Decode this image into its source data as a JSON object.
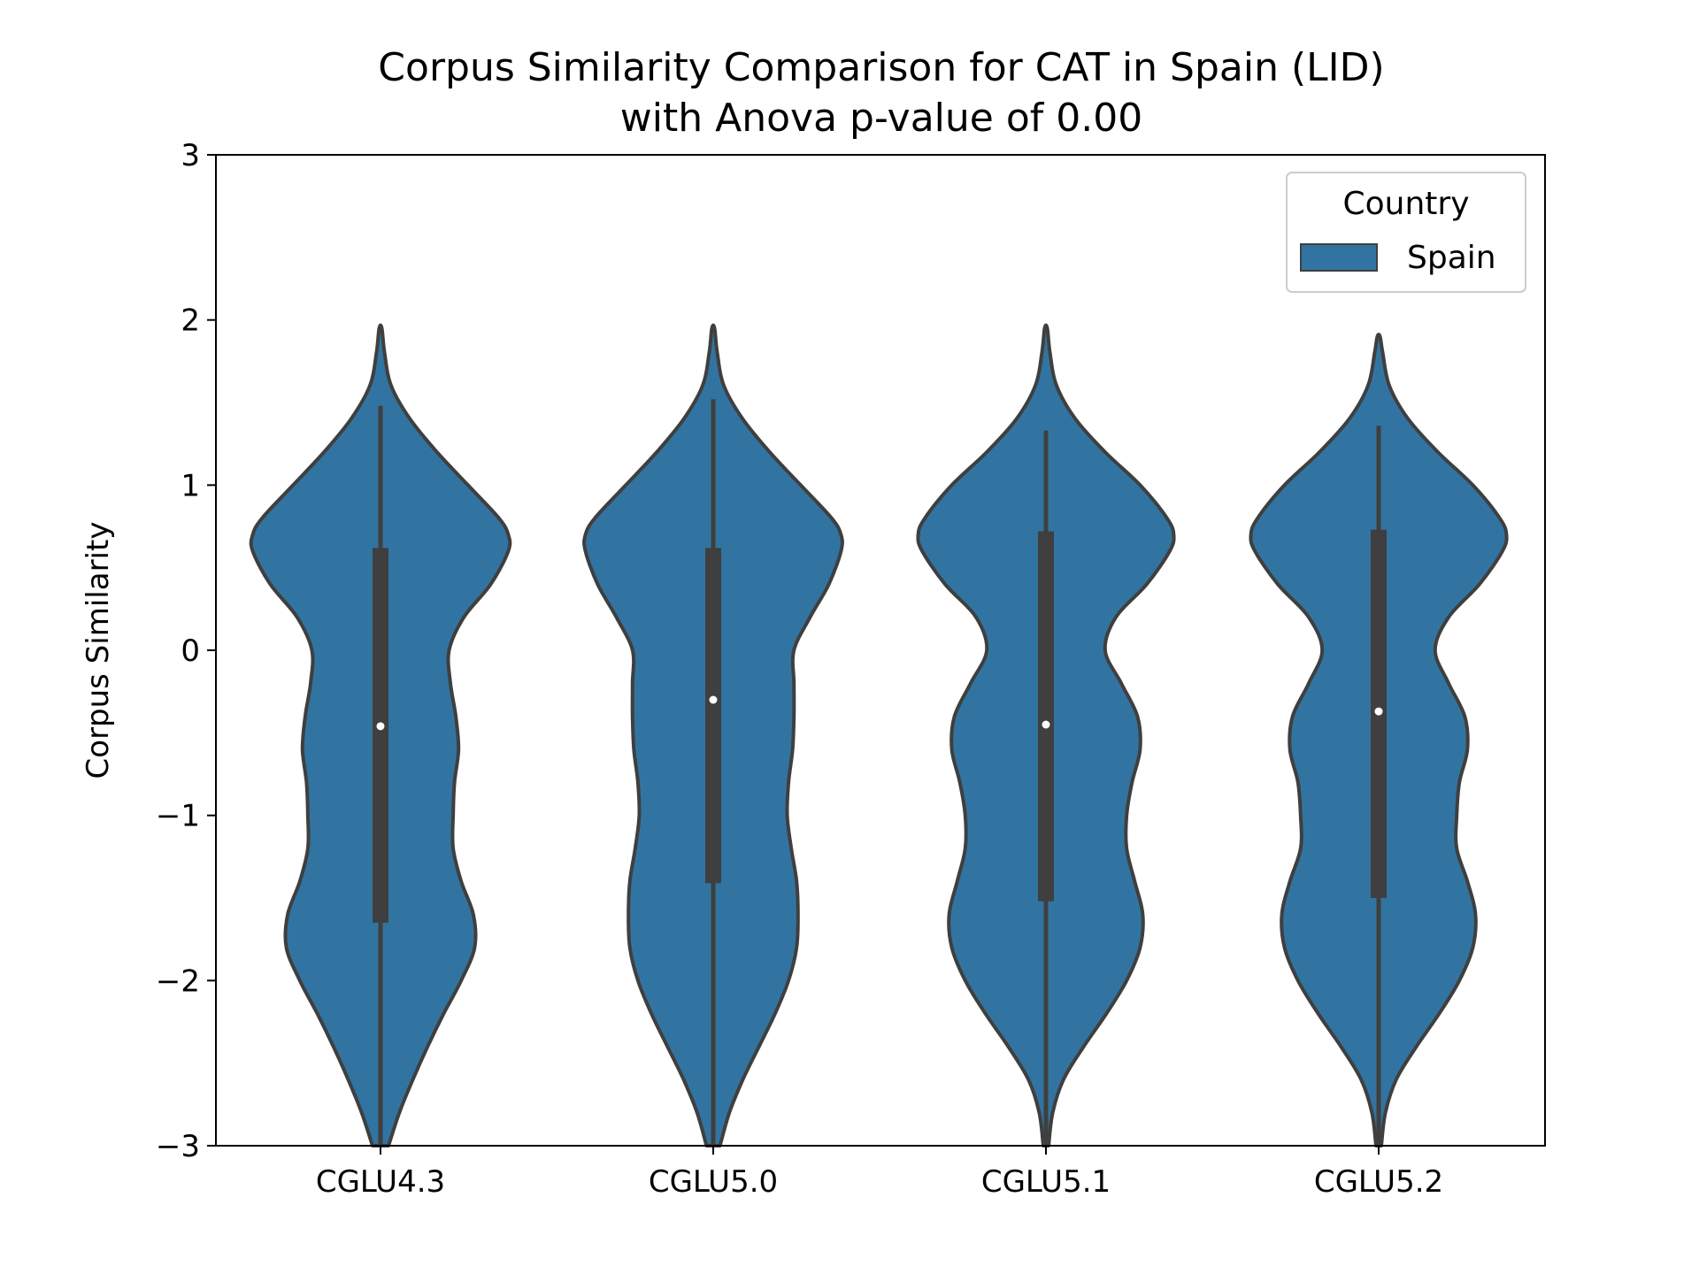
{
  "chart_data": {
    "type": "violin",
    "title_line1": "Corpus Similarity Comparison for CAT in Spain (LID)",
    "title_line2": "with Anova p-value of 0.00",
    "xlabel": "",
    "ylabel": "Corpus Similarity",
    "ylim": [
      -3,
      3
    ],
    "yticks": [
      -3,
      -2,
      -1,
      0,
      1,
      2,
      3
    ],
    "ytick_labels": [
      "−3",
      "−2",
      "−1",
      "0",
      "1",
      "2",
      "3"
    ],
    "categories": [
      "CGLU4.3",
      "CGLU5.0",
      "CGLU5.1",
      "CGLU5.2"
    ],
    "legend": {
      "title": "Country",
      "entries": [
        "Spain"
      ],
      "placement": "top-right"
    },
    "colors": {
      "fill": "#3274a1",
      "edge": "#3f3f3f",
      "box": "#3f3f3f",
      "median": "#ffffff"
    },
    "series": [
      {
        "category": "CGLU4.3",
        "median": -0.46,
        "q1": -1.65,
        "q3": 0.62,
        "whisker_low": -3.0,
        "whisker_high": 1.48,
        "density_profile": [
          [
            -3.0,
            0.06
          ],
          [
            -2.8,
            0.14
          ],
          [
            -2.6,
            0.24
          ],
          [
            -2.4,
            0.35
          ],
          [
            -2.2,
            0.47
          ],
          [
            -2.0,
            0.6
          ],
          [
            -1.8,
            0.7
          ],
          [
            -1.6,
            0.69
          ],
          [
            -1.4,
            0.6
          ],
          [
            -1.2,
            0.54
          ],
          [
            -1.0,
            0.54
          ],
          [
            -0.8,
            0.55
          ],
          [
            -0.6,
            0.58
          ],
          [
            -0.4,
            0.56
          ],
          [
            -0.2,
            0.52
          ],
          [
            0.0,
            0.51
          ],
          [
            0.2,
            0.62
          ],
          [
            0.4,
            0.82
          ],
          [
            0.6,
            0.95
          ],
          [
            0.7,
            0.95
          ],
          [
            0.8,
            0.88
          ],
          [
            1.0,
            0.65
          ],
          [
            1.2,
            0.42
          ],
          [
            1.4,
            0.22
          ],
          [
            1.6,
            0.08
          ],
          [
            1.8,
            0.03
          ],
          [
            1.95,
            0.01
          ]
        ]
      },
      {
        "category": "CGLU5.0",
        "median": -0.3,
        "q1": -1.41,
        "q3": 0.62,
        "whisker_low": -3.0,
        "whisker_high": 1.52,
        "density_profile": [
          [
            -3.0,
            0.05
          ],
          [
            -2.8,
            0.12
          ],
          [
            -2.6,
            0.22
          ],
          [
            -2.4,
            0.34
          ],
          [
            -2.2,
            0.46
          ],
          [
            -2.0,
            0.56
          ],
          [
            -1.8,
            0.62
          ],
          [
            -1.6,
            0.63
          ],
          [
            -1.4,
            0.62
          ],
          [
            -1.2,
            0.58
          ],
          [
            -1.0,
            0.55
          ],
          [
            -0.8,
            0.56
          ],
          [
            -0.6,
            0.59
          ],
          [
            -0.4,
            0.6
          ],
          [
            -0.2,
            0.6
          ],
          [
            0.0,
            0.6
          ],
          [
            0.2,
            0.72
          ],
          [
            0.4,
            0.86
          ],
          [
            0.6,
            0.95
          ],
          [
            0.7,
            0.95
          ],
          [
            0.8,
            0.88
          ],
          [
            1.0,
            0.65
          ],
          [
            1.2,
            0.42
          ],
          [
            1.4,
            0.22
          ],
          [
            1.6,
            0.08
          ],
          [
            1.8,
            0.03
          ],
          [
            1.95,
            0.01
          ]
        ]
      },
      {
        "category": "CGLU5.1",
        "median": -0.45,
        "q1": -1.52,
        "q3": 0.72,
        "whisker_low": -3.0,
        "whisker_high": 1.33,
        "density_profile": [
          [
            -3.0,
            0.02
          ],
          [
            -2.8,
            0.05
          ],
          [
            -2.6,
            0.13
          ],
          [
            -2.4,
            0.28
          ],
          [
            -2.2,
            0.45
          ],
          [
            -2.0,
            0.6
          ],
          [
            -1.8,
            0.7
          ],
          [
            -1.6,
            0.72
          ],
          [
            -1.4,
            0.66
          ],
          [
            -1.2,
            0.6
          ],
          [
            -1.0,
            0.6
          ],
          [
            -0.8,
            0.64
          ],
          [
            -0.6,
            0.7
          ],
          [
            -0.4,
            0.68
          ],
          [
            -0.2,
            0.56
          ],
          [
            0.0,
            0.44
          ],
          [
            0.2,
            0.52
          ],
          [
            0.4,
            0.75
          ],
          [
            0.6,
            0.92
          ],
          [
            0.7,
            0.95
          ],
          [
            0.8,
            0.9
          ],
          [
            1.0,
            0.7
          ],
          [
            1.2,
            0.44
          ],
          [
            1.4,
            0.22
          ],
          [
            1.6,
            0.08
          ],
          [
            1.8,
            0.03
          ],
          [
            1.95,
            0.01
          ]
        ]
      },
      {
        "category": "CGLU5.2",
        "median": -0.37,
        "q1": -1.5,
        "q3": 0.73,
        "whisker_low": -3.0,
        "whisker_high": 1.36,
        "density_profile": [
          [
            -3.0,
            0.02
          ],
          [
            -2.8,
            0.05
          ],
          [
            -2.6,
            0.13
          ],
          [
            -2.4,
            0.28
          ],
          [
            -2.2,
            0.45
          ],
          [
            -2.0,
            0.6
          ],
          [
            -1.8,
            0.7
          ],
          [
            -1.6,
            0.72
          ],
          [
            -1.4,
            0.66
          ],
          [
            -1.2,
            0.58
          ],
          [
            -1.0,
            0.58
          ],
          [
            -0.8,
            0.6
          ],
          [
            -0.6,
            0.66
          ],
          [
            -0.4,
            0.64
          ],
          [
            -0.2,
            0.52
          ],
          [
            0.0,
            0.42
          ],
          [
            0.2,
            0.52
          ],
          [
            0.4,
            0.75
          ],
          [
            0.6,
            0.92
          ],
          [
            0.7,
            0.95
          ],
          [
            0.8,
            0.9
          ],
          [
            1.0,
            0.7
          ],
          [
            1.2,
            0.44
          ],
          [
            1.4,
            0.22
          ],
          [
            1.6,
            0.08
          ],
          [
            1.8,
            0.03
          ],
          [
            1.9,
            0.01
          ]
        ]
      }
    ]
  }
}
